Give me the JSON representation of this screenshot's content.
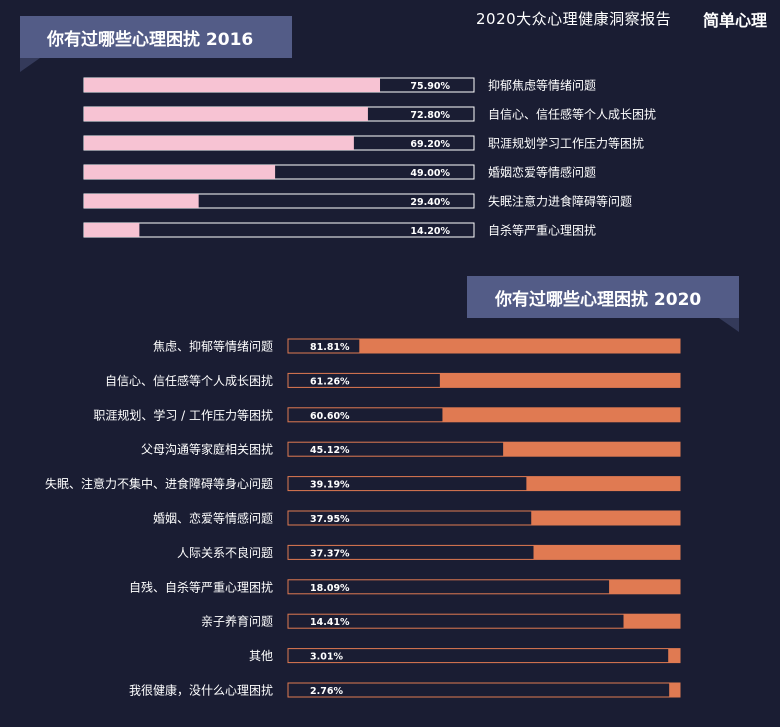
{
  "header": {
    "report_title": "2020大众心理健康洞察报告",
    "brand": "简单心理"
  },
  "colors": {
    "background": "#1a1d33",
    "bar_2016": "#f7c3d3",
    "bar_2020": "#e07a52",
    "track": "#1a1d33",
    "border_2016": "#ffffff",
    "border_2020": "#e07a52",
    "ribbon": "#535c87"
  },
  "chart_data": [
    {
      "type": "bar",
      "title": "你有过哪些心理困扰 2016",
      "orientation": "horizontal",
      "categories": [
        "抑郁焦虑等情绪问题",
        "自信心、信任感等个人成长困扰",
        "职涯规划学习工作压力等困扰",
        "婚姻恋爱等情感问题",
        "失眠注意力进食障碍等问题",
        "自杀等严重心理困扰"
      ],
      "values": [
        75.9,
        72.8,
        69.2,
        49.0,
        29.4,
        14.2
      ],
      "value_labels": [
        "75.90%",
        "72.80%",
        "69.20%",
        "49.00%",
        "29.40%",
        "14.20%"
      ],
      "xlim": [
        0,
        100
      ],
      "fill_direction": "left-to-right",
      "label_placement": "right"
    },
    {
      "type": "bar",
      "title": "你有过哪些心理困扰 2020",
      "orientation": "horizontal",
      "categories": [
        "焦虑、抑郁等情绪问题",
        "自信心、信任感等个人成长困扰",
        "职涯规划、学习 / 工作压力等困扰",
        "父母沟通等家庭相关困扰",
        "失眠、注意力不集中、进食障碍等身心问题",
        "婚姻、恋爱等情感问题",
        "人际关系不良问题",
        "自残、自杀等严重心理困扰",
        "亲子养育问题",
        "其他",
        "我很健康，没什么心理困扰"
      ],
      "values": [
        81.81,
        61.26,
        60.6,
        45.12,
        39.19,
        37.95,
        37.37,
        18.09,
        14.41,
        3.01,
        2.76
      ],
      "value_labels": [
        "81.81%",
        "61.26%",
        "60.60%",
        "45.12%",
        "39.19%",
        "37.95%",
        "37.37%",
        "18.09%",
        "14.41%",
        "3.01%",
        "2.76%"
      ],
      "xlim": [
        0,
        100
      ],
      "fill_direction": "right-to-left",
      "label_placement": "left"
    }
  ]
}
